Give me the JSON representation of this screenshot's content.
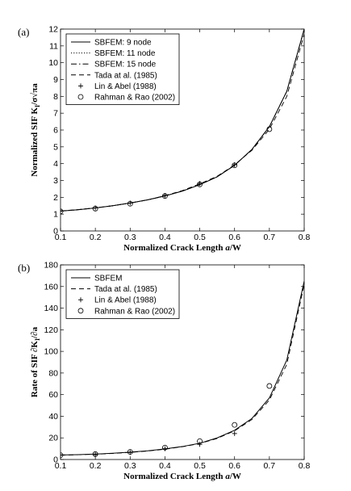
{
  "chart_data": [
    {
      "type": "line",
      "panel_label": "(a)",
      "xlabel_parts": [
        "Normalized Crack Length ",
        "a",
        "/W"
      ],
      "ylabel_parts": [
        "Normalized SIF K",
        "I",
        "/σ√πa"
      ],
      "xlim": [
        0.1,
        0.8
      ],
      "ylim": [
        0,
        12
      ],
      "xticks": [
        "0.1",
        "0.2",
        "0.3",
        "0.4",
        "0.5",
        "0.6",
        "0.7",
        "0.8"
      ],
      "yticks": [
        "0",
        "1",
        "2",
        "3",
        "4",
        "5",
        "6",
        "7",
        "8",
        "9",
        "10",
        "11",
        "12"
      ],
      "grid": false,
      "legend_position": "top-left",
      "series": [
        {
          "name": "SBFEM: 9 node",
          "style": "solid",
          "x": [
            0.1,
            0.15,
            0.2,
            0.25,
            0.3,
            0.35,
            0.4,
            0.45,
            0.5,
            0.55,
            0.6,
            0.65,
            0.7,
            0.75,
            0.8
          ],
          "y": [
            1.18,
            1.26,
            1.37,
            1.5,
            1.66,
            1.85,
            2.08,
            2.37,
            2.75,
            3.22,
            3.9,
            4.85,
            6.2,
            8.3,
            12.0
          ]
        },
        {
          "name": "SBFEM: 11 node",
          "style": "dotted",
          "x": [
            0.1,
            0.15,
            0.2,
            0.25,
            0.3,
            0.35,
            0.4,
            0.45,
            0.5,
            0.55,
            0.6,
            0.65,
            0.7,
            0.75,
            0.8
          ],
          "y": [
            1.18,
            1.26,
            1.37,
            1.5,
            1.66,
            1.85,
            2.08,
            2.37,
            2.75,
            3.22,
            3.9,
            4.85,
            6.2,
            8.3,
            12.0
          ]
        },
        {
          "name": "SBFEM: 15 node",
          "style": "dashdot",
          "x": [
            0.1,
            0.15,
            0.2,
            0.25,
            0.3,
            0.35,
            0.4,
            0.45,
            0.5,
            0.55,
            0.6,
            0.65,
            0.7,
            0.75,
            0.8
          ],
          "y": [
            1.18,
            1.26,
            1.37,
            1.5,
            1.66,
            1.85,
            2.08,
            2.37,
            2.75,
            3.22,
            3.9,
            4.85,
            6.2,
            8.3,
            12.0
          ]
        },
        {
          "name": "Tada at al. (1985)",
          "style": "dashed",
          "x": [
            0.1,
            0.15,
            0.2,
            0.25,
            0.3,
            0.35,
            0.4,
            0.45,
            0.5,
            0.55,
            0.6,
            0.65,
            0.7,
            0.75,
            0.8
          ],
          "y": [
            1.19,
            1.27,
            1.37,
            1.5,
            1.66,
            1.85,
            2.1,
            2.4,
            2.8,
            3.25,
            3.93,
            4.8,
            6.05,
            8.0,
            11.7
          ]
        },
        {
          "name": "Lin & Abel (1988)",
          "style": "plus",
          "x": [
            0.1,
            0.2,
            0.3,
            0.4,
            0.5,
            0.6
          ],
          "y": [
            1.19,
            1.37,
            1.66,
            2.11,
            2.82,
            3.94
          ]
        },
        {
          "name": "Rahman & Rao (2002)",
          "style": "circle",
          "x": [
            0.1,
            0.2,
            0.3,
            0.4,
            0.5,
            0.6,
            0.7
          ],
          "y": [
            1.16,
            1.33,
            1.62,
            2.08,
            2.77,
            3.9,
            6.05
          ]
        }
      ]
    },
    {
      "type": "line",
      "panel_label": "(b)",
      "xlabel_parts": [
        "Normalized Crack Length ",
        "a",
        "/W"
      ],
      "ylabel_parts": [
        "Rate of SIF ∂K",
        "I",
        "/∂a"
      ],
      "xlim": [
        0.1,
        0.8
      ],
      "ylim": [
        0,
        180
      ],
      "xticks": [
        "0.1",
        "0.2",
        "0.3",
        "0.4",
        "0.5",
        "0.6",
        "0.7",
        "0.8"
      ],
      "yticks": [
        "0",
        "20",
        "40",
        "60",
        "80",
        "100",
        "120",
        "140",
        "160",
        "180"
      ],
      "grid": false,
      "legend_position": "top-left",
      "series": [
        {
          "name": "SBFEM",
          "style": "solid",
          "x": [
            0.1,
            0.15,
            0.2,
            0.25,
            0.3,
            0.35,
            0.4,
            0.45,
            0.5,
            0.55,
            0.6,
            0.65,
            0.7,
            0.75,
            0.8
          ],
          "y": [
            4.2,
            4.5,
            5.0,
            5.8,
            6.8,
            8.0,
            9.8,
            12.0,
            15.0,
            20.0,
            27.0,
            38.0,
            57.0,
            92.0,
            165.0
          ]
        },
        {
          "name": "Tada at al. (1985)",
          "style": "dashed",
          "x": [
            0.1,
            0.15,
            0.2,
            0.25,
            0.3,
            0.35,
            0.4,
            0.45,
            0.5,
            0.55,
            0.6,
            0.65,
            0.7,
            0.75,
            0.8
          ],
          "y": [
            4.0,
            4.4,
            4.9,
            5.6,
            6.6,
            7.8,
            9.5,
            11.8,
            14.8,
            19.5,
            26.5,
            37.0,
            55.0,
            88.0,
            162.0
          ]
        },
        {
          "name": "Lin & Abel (1988)",
          "style": "plus",
          "x": [
            0.1,
            0.2,
            0.3,
            0.4,
            0.5,
            0.6
          ],
          "y": [
            4.2,
            4.5,
            6.5,
            10.0,
            14.0,
            24.0
          ]
        },
        {
          "name": "Rahman & Rao (2002)",
          "style": "circle",
          "x": [
            0.1,
            0.2,
            0.3,
            0.4,
            0.5,
            0.6,
            0.7
          ],
          "y": [
            4.0,
            5.0,
            7.0,
            11.0,
            17.0,
            32.0,
            68.0
          ]
        }
      ]
    }
  ]
}
